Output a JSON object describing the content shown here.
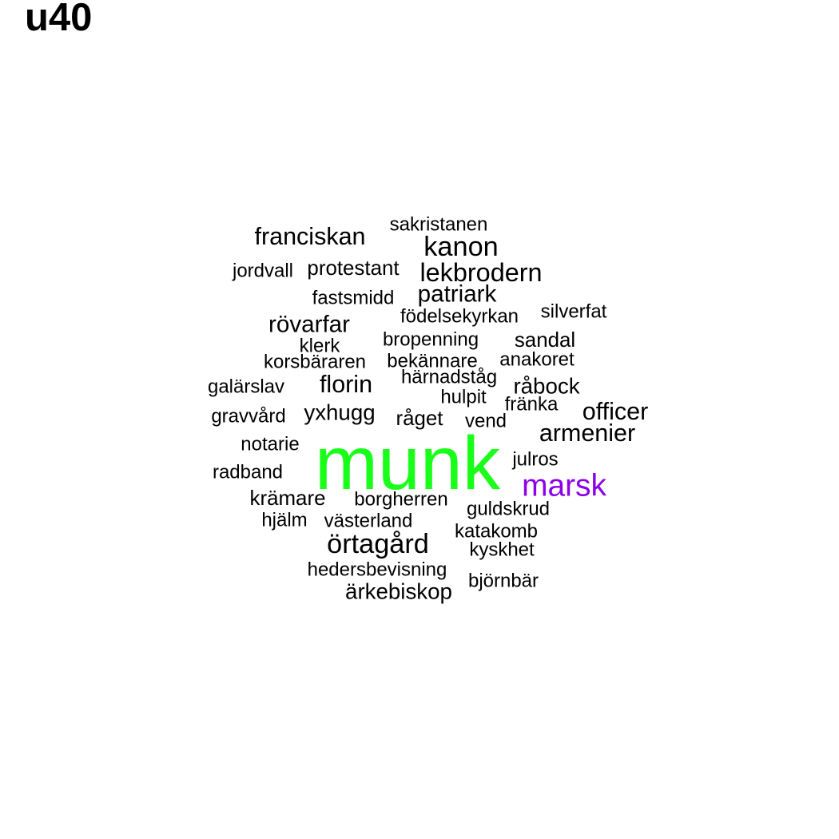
{
  "panel_title": "u40",
  "chart_data": {
    "type": "wordcloud",
    "title": "u40",
    "colors": {
      "default": "#000000",
      "munk": "#1aff1a",
      "marsk": "#8b00e8"
    },
    "words": [
      {
        "text": "sakristanen",
        "weight": 24
      },
      {
        "text": "franciskan",
        "weight": 31
      },
      {
        "text": "kanon",
        "weight": 35
      },
      {
        "text": "jordvall",
        "weight": 24
      },
      {
        "text": "protestant",
        "weight": 26
      },
      {
        "text": "lekbrodern",
        "weight": 33
      },
      {
        "text": "fastsmidd",
        "weight": 24
      },
      {
        "text": "patriark",
        "weight": 30
      },
      {
        "text": "födelsekyrkan",
        "weight": 24
      },
      {
        "text": "silverfat",
        "weight": 24
      },
      {
        "text": "rövarfar",
        "weight": 30
      },
      {
        "text": "bropenning",
        "weight": 24
      },
      {
        "text": "sandal",
        "weight": 26
      },
      {
        "text": "klerk",
        "weight": 24
      },
      {
        "text": "korsbäraren",
        "weight": 24
      },
      {
        "text": "bekännare",
        "weight": 24
      },
      {
        "text": "anakoret",
        "weight": 24
      },
      {
        "text": "härnadståg",
        "weight": 24
      },
      {
        "text": "galärslav",
        "weight": 24
      },
      {
        "text": "florin",
        "weight": 31
      },
      {
        "text": "råbock",
        "weight": 28
      },
      {
        "text": "hulpit",
        "weight": 24
      },
      {
        "text": "fränka",
        "weight": 24
      },
      {
        "text": "officer",
        "weight": 31
      },
      {
        "text": "gravvård",
        "weight": 24
      },
      {
        "text": "yxhugg",
        "weight": 28
      },
      {
        "text": "råget",
        "weight": 26
      },
      {
        "text": "vend",
        "weight": 24
      },
      {
        "text": "armenier",
        "weight": 31
      },
      {
        "text": "notarie",
        "weight": 24
      },
      {
        "text": "munk",
        "weight": 100
      },
      {
        "text": "julros",
        "weight": 24
      },
      {
        "text": "radband",
        "weight": 24
      },
      {
        "text": "marsk",
        "weight": 40
      },
      {
        "text": "krämare",
        "weight": 26
      },
      {
        "text": "borgherren",
        "weight": 24
      },
      {
        "text": "guldskrud",
        "weight": 24
      },
      {
        "text": "hjälm",
        "weight": 24
      },
      {
        "text": "västerland",
        "weight": 24
      },
      {
        "text": "katakomb",
        "weight": 24
      },
      {
        "text": "örtagård",
        "weight": 35
      },
      {
        "text": "kyskhet",
        "weight": 24
      },
      {
        "text": "hedersbevisning",
        "weight": 24
      },
      {
        "text": "björnbär",
        "weight": 24
      },
      {
        "text": "ärkebiskop",
        "weight": 28
      }
    ]
  }
}
